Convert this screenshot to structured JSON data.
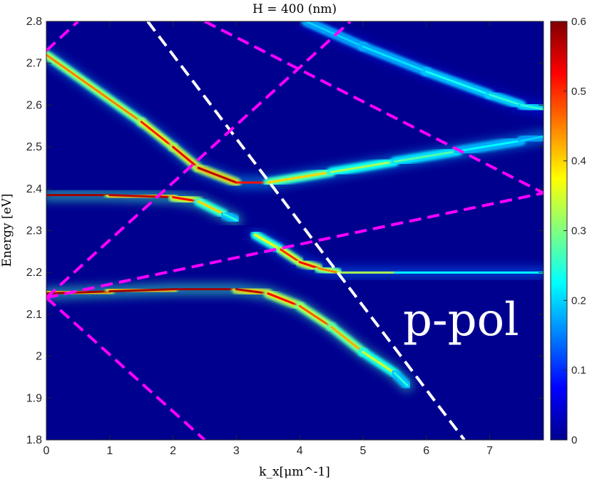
{
  "chart_data": {
    "type": "heatmap",
    "title": "H = 400 (nm)",
    "xlabel": "k_x[μm^-1]",
    "ylabel": "Energy [eV]",
    "xlim": [
      0,
      7.85
    ],
    "ylim": [
      1.8,
      2.8
    ],
    "xticks": [
      0,
      1,
      2,
      3,
      4,
      5,
      6,
      7
    ],
    "yticks": [
      1.8,
      1.9,
      2.0,
      2.1,
      2.2,
      2.3,
      2.4,
      2.5,
      2.6,
      2.7,
      2.8
    ],
    "ytick_labels": [
      "1.8",
      "1.9",
      "2",
      "2.1",
      "2.2",
      "2.3",
      "2.4",
      "2.5",
      "2.6",
      "2.7",
      "2.8"
    ],
    "colormap": "jet",
    "colorbar": {
      "range": [
        0,
        0.6
      ],
      "ticks": [
        0,
        0.1,
        0.2,
        0.3,
        0.4,
        0.5,
        0.6
      ],
      "tick_labels": [
        "0",
        "0.1",
        "0.2",
        "0.3",
        "0.4",
        "0.5",
        "0.6"
      ]
    },
    "background_color": "#00008f",
    "annotation": "p-pol",
    "bands": [
      {
        "x": [
          0,
          1.5,
          2.0,
          2.4,
          3.0,
          3.5,
          4.5,
          5.5,
          6.5,
          7.5,
          7.85
        ],
        "y": [
          2.72,
          2.56,
          2.5,
          2.45,
          2.415,
          2.415,
          2.44,
          2.465,
          2.49,
          2.515,
          2.525
        ],
        "intensity": [
          0.4,
          0.5,
          0.52,
          0.55,
          0.58,
          0.45,
          0.35,
          0.3,
          0.25,
          0.2,
          0.2
        ]
      },
      {
        "x": [
          0,
          1.0,
          2.0,
          2.4,
          2.8,
          3.0
        ],
        "y": [
          2.385,
          2.385,
          2.38,
          2.37,
          2.34,
          2.325
        ],
        "intensity": [
          0.58,
          0.58,
          0.55,
          0.5,
          0.3,
          0.2
        ]
      },
      {
        "x": [
          0,
          1.0,
          2.0,
          3.0,
          3.5,
          4.0,
          4.5,
          5.0,
          5.5,
          5.7
        ],
        "y": [
          2.15,
          2.155,
          2.16,
          2.16,
          2.15,
          2.12,
          2.07,
          2.01,
          1.96,
          1.93
        ],
        "intensity": [
          0.58,
          0.58,
          0.58,
          0.58,
          0.55,
          0.5,
          0.45,
          0.4,
          0.3,
          0.2
        ]
      },
      {
        "x": [
          3.3,
          3.7,
          4.0,
          4.3,
          4.6,
          5.5,
          7.85
        ],
        "y": [
          2.29,
          2.255,
          2.225,
          2.21,
          2.2,
          2.2,
          2.2
        ],
        "intensity": [
          0.3,
          0.45,
          0.55,
          0.5,
          0.4,
          0.25,
          0.2
        ]
      },
      {
        "x": [
          4.1,
          5.0,
          6.0,
          7.0,
          7.5,
          7.85
        ],
        "y": [
          2.8,
          2.74,
          2.68,
          2.625,
          2.6,
          2.59
        ],
        "intensity": [
          0.2,
          0.2,
          0.22,
          0.25,
          0.25,
          0.25
        ]
      }
    ],
    "dashed_lines": [
      {
        "color": "#ffffff",
        "x": [
          1.6,
          6.6
        ],
        "y": [
          2.8,
          1.8
        ]
      },
      {
        "color": "#ff00ff",
        "x": [
          0,
          7.85
        ],
        "y": [
          2.14,
          2.39
        ]
      },
      {
        "color": "#ff00ff",
        "x": [
          0,
          2.5
        ],
        "y": [
          2.14,
          1.8
        ]
      },
      {
        "color": "#ff00ff",
        "x": [
          0,
          4.8
        ],
        "y": [
          2.14,
          2.8
        ]
      },
      {
        "color": "#ff00ff",
        "x": [
          0,
          0.5
        ],
        "y": [
          2.73,
          2.8
        ]
      },
      {
        "color": "#ff00ff",
        "x": [
          2.5,
          7.85
        ],
        "y": [
          2.8,
          2.39
        ]
      }
    ]
  }
}
